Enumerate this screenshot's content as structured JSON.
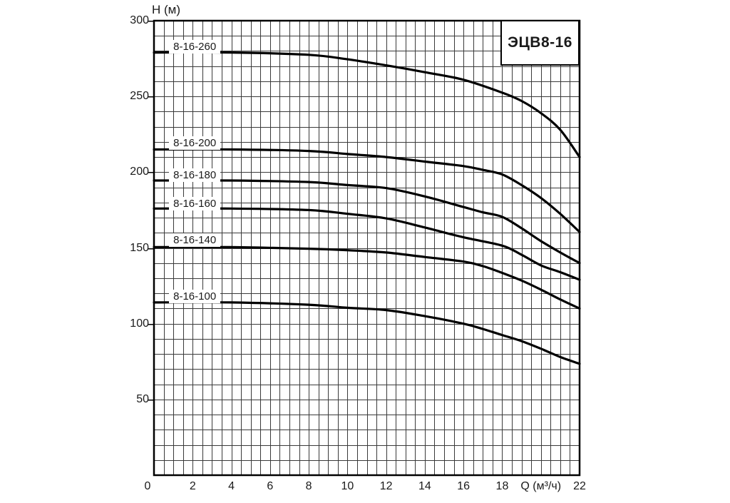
{
  "header": {
    "title_box_label": "ЭЦВ8-16"
  },
  "axes": {
    "y_title": "H (м)",
    "x_title": "Q (м³/ч)",
    "x_tick_labels": [
      "0",
      "2",
      "4",
      "6",
      "8",
      "10",
      "12",
      "14",
      "16",
      "18",
      "22"
    ],
    "y_tick_labels": [
      "300",
      "250",
      "200",
      "150",
      "100",
      "50"
    ]
  },
  "colors": {
    "background": "#ffffff",
    "curve": "#000000",
    "grid": "#3a3a3a",
    "axis": "#000000",
    "text": "#1a1a1a",
    "label_bg": "#ffffff"
  },
  "chart_data": {
    "type": "line",
    "title": "ЭЦВ8-16",
    "xlabel": "Q (м³/ч)",
    "ylabel": "H (м)",
    "xlim": [
      0,
      22
    ],
    "ylim": [
      0,
      300
    ],
    "x_ticks": [
      0,
      2,
      4,
      6,
      8,
      10,
      12,
      14,
      16,
      18,
      22
    ],
    "y_ticks": [
      300,
      250,
      200,
      150,
      100,
      50
    ],
    "x_grid_step": 0.5,
    "y_grid_step": 10,
    "grid": true,
    "legend_position": "none",
    "x_title_at": 20,
    "series": [
      {
        "name": "8-16-260",
        "label_pos": [
          1.0,
          283
        ],
        "points": [
          [
            0,
            279
          ],
          [
            4,
            279
          ],
          [
            8,
            277.5
          ],
          [
            10,
            274.5
          ],
          [
            12,
            270.5
          ],
          [
            14,
            266
          ],
          [
            16,
            261
          ],
          [
            18,
            252.5
          ],
          [
            19,
            247
          ],
          [
            20,
            239
          ],
          [
            21,
            228
          ],
          [
            22,
            210
          ]
        ]
      },
      {
        "name": "8-16-200",
        "label_pos": [
          1.0,
          219
        ],
        "points": [
          [
            0,
            215
          ],
          [
            4,
            215
          ],
          [
            8,
            214
          ],
          [
            10,
            212
          ],
          [
            12,
            210
          ],
          [
            14,
            207
          ],
          [
            16,
            204
          ],
          [
            17,
            201.5
          ],
          [
            18,
            198.5
          ],
          [
            19,
            191.5
          ],
          [
            20,
            183
          ],
          [
            21,
            172.5
          ],
          [
            22,
            160.5
          ]
        ]
      },
      {
        "name": "8-16-180",
        "label_pos": [
          1.0,
          198
        ],
        "points": [
          [
            0,
            194.5
          ],
          [
            4,
            194.5
          ],
          [
            8,
            193.5
          ],
          [
            10,
            191.5
          ],
          [
            12,
            189.5
          ],
          [
            14,
            184
          ],
          [
            16,
            177
          ],
          [
            17,
            173.5
          ],
          [
            18,
            170.5
          ],
          [
            19,
            163
          ],
          [
            20,
            154.5
          ],
          [
            21,
            147
          ],
          [
            22,
            140
          ]
        ]
      },
      {
        "name": "8-16-160",
        "label_pos": [
          1.0,
          179
        ],
        "points": [
          [
            0,
            176
          ],
          [
            4,
            176
          ],
          [
            8,
            175
          ],
          [
            10,
            172.5
          ],
          [
            12,
            169.5
          ],
          [
            14,
            163.5
          ],
          [
            16,
            157
          ],
          [
            18,
            151.5
          ],
          [
            19,
            145.5
          ],
          [
            20,
            138.5
          ],
          [
            21,
            134
          ],
          [
            22,
            129
          ]
        ]
      },
      {
        "name": "8-16-140",
        "label_pos": [
          1.0,
          155
        ],
        "points": [
          [
            0,
            150.5
          ],
          [
            4,
            150.5
          ],
          [
            8,
            149.5
          ],
          [
            10,
            148.5
          ],
          [
            12,
            147
          ],
          [
            14,
            144
          ],
          [
            16,
            141
          ],
          [
            17,
            138
          ],
          [
            18,
            133.5
          ],
          [
            19,
            128.5
          ],
          [
            20,
            122.5
          ],
          [
            21,
            116
          ],
          [
            22,
            110
          ]
        ]
      },
      {
        "name": "8-16-100",
        "label_pos": [
          1.0,
          118
        ],
        "points": [
          [
            0,
            114
          ],
          [
            4,
            114
          ],
          [
            8,
            112.5
          ],
          [
            10,
            110.5
          ],
          [
            12,
            109
          ],
          [
            14,
            105
          ],
          [
            16,
            100
          ],
          [
            17,
            96.5
          ],
          [
            18,
            92.5
          ],
          [
            19,
            88.5
          ],
          [
            20,
            83.5
          ],
          [
            21,
            78
          ],
          [
            22,
            73.5
          ]
        ]
      }
    ]
  }
}
